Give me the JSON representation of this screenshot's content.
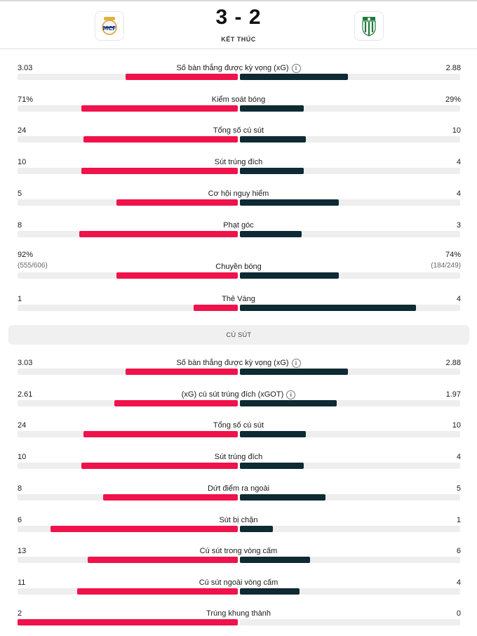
{
  "match": {
    "score": "3 - 2",
    "status": "KẾT THÚC",
    "home_crest_icon": "real-madrid-crest-icon",
    "away_crest_icon": "leganes-crest-icon"
  },
  "colors": {
    "home": "#f0124a",
    "away": "#0e2a33",
    "track": "#eeeeee"
  },
  "section_header": "CÚ SÚT",
  "stats": [
    {
      "label": "Số bàn thắng được kỳ vọng (xG)",
      "left": "3.03",
      "right": "2.88",
      "left_pct": 51,
      "right_pct": 49,
      "info": true
    },
    {
      "label": "Kiểm soát bóng",
      "left": "71%",
      "right": "29%",
      "left_pct": 71,
      "right_pct": 29
    },
    {
      "label": "Tổng số cú sút",
      "left": "24",
      "right": "10",
      "left_pct": 70,
      "right_pct": 30
    },
    {
      "label": "Sút trúng đích",
      "left": "10",
      "right": "4",
      "left_pct": 71,
      "right_pct": 29
    },
    {
      "label": "Cơ hội nguy hiểm",
      "left": "5",
      "right": "4",
      "left_pct": 55,
      "right_pct": 45
    },
    {
      "label": "Phạt góc",
      "left": "8",
      "right": "3",
      "left_pct": 72,
      "right_pct": 28
    },
    {
      "label": "Chuyền bóng",
      "left": "92%",
      "left_sub": "(555/606)",
      "right": "74%",
      "right_sub": "(184/249)",
      "left_pct": 55,
      "right_pct": 45
    },
    {
      "label": "Thẻ Vàng",
      "left": "1",
      "right": "4",
      "left_pct": 20,
      "right_pct": 80
    }
  ],
  "shots": [
    {
      "label": "Số bàn thắng được kỳ vọng (xG)",
      "left": "3.03",
      "right": "2.88",
      "left_pct": 51,
      "right_pct": 49,
      "info": true
    },
    {
      "label": "(xG) cú sút trúng đích (xGOT)",
      "left": "2.61",
      "right": "1.97",
      "left_pct": 56,
      "right_pct": 44,
      "info": true
    },
    {
      "label": "Tổng số cú sút",
      "left": "24",
      "right": "10",
      "left_pct": 70,
      "right_pct": 30
    },
    {
      "label": "Sút trúng đích",
      "left": "10",
      "right": "4",
      "left_pct": 71,
      "right_pct": 29
    },
    {
      "label": "Dứt điểm ra ngoài",
      "left": "8",
      "right": "5",
      "left_pct": 61,
      "right_pct": 39
    },
    {
      "label": "Sút bị chặn",
      "left": "6",
      "right": "1",
      "left_pct": 85,
      "right_pct": 15
    },
    {
      "label": "Cú sút trong vòng cấm",
      "left": "13",
      "right": "6",
      "left_pct": 68,
      "right_pct": 32
    },
    {
      "label": "Cú sút ngoài vòng cấm",
      "left": "11",
      "right": "4",
      "left_pct": 73,
      "right_pct": 27
    },
    {
      "label": "Trúng khung thành",
      "left": "2",
      "right": "0",
      "left_pct": 100,
      "right_pct": 0
    }
  ]
}
